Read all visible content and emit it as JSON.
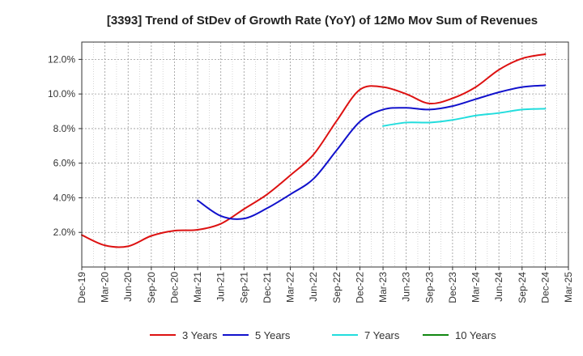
{
  "chart_data": {
    "type": "line",
    "title": "[3393]  Trend of StDev of Growth Rate (YoY) of 12Mo Mov Sum of Revenues",
    "xlabel": "",
    "ylabel": "",
    "ylim": [
      0.0,
      13.0
    ],
    "y_ticks": [
      2.0,
      4.0,
      6.0,
      8.0,
      10.0,
      12.0
    ],
    "y_tick_labels": [
      "2.0%",
      "4.0%",
      "6.0%",
      "8.0%",
      "10.0%",
      "12.0%"
    ],
    "categories": [
      "Dec-19",
      "Mar-20",
      "Jun-20",
      "Sep-20",
      "Dec-20",
      "Mar-21",
      "Jun-21",
      "Sep-21",
      "Dec-21",
      "Mar-22",
      "Jun-22",
      "Sep-22",
      "Dec-22",
      "Mar-23",
      "Jun-23",
      "Sep-23",
      "Dec-23",
      "Mar-24",
      "Jun-24",
      "Sep-24",
      "Dec-24",
      "Mar-25"
    ],
    "grid": true,
    "series": [
      {
        "name": "3 Years",
        "color": "#dd1111",
        "values": [
          1.85,
          1.25,
          1.2,
          1.8,
          2.1,
          2.15,
          2.5,
          3.35,
          4.2,
          5.3,
          6.5,
          8.45,
          10.25,
          10.4,
          10.0,
          9.45,
          9.75,
          10.4,
          11.4,
          12.05,
          12.3,
          null
        ]
      },
      {
        "name": "5 Years",
        "color": "#1111cc",
        "values": [
          null,
          null,
          null,
          null,
          null,
          3.85,
          2.95,
          2.8,
          3.4,
          4.2,
          5.1,
          6.75,
          8.4,
          9.1,
          9.2,
          9.1,
          9.3,
          9.7,
          10.1,
          10.4,
          10.5,
          null
        ]
      },
      {
        "name": "7 Years",
        "color": "#22dddd",
        "values": [
          null,
          null,
          null,
          null,
          null,
          null,
          null,
          null,
          null,
          null,
          null,
          null,
          null,
          8.15,
          8.35,
          8.35,
          8.5,
          8.75,
          8.9,
          9.1,
          9.15,
          null
        ]
      },
      {
        "name": "10 Years",
        "color": "#118811",
        "values": [
          null,
          null,
          null,
          null,
          null,
          null,
          null,
          null,
          null,
          null,
          null,
          null,
          null,
          null,
          null,
          null,
          null,
          null,
          null,
          null,
          null,
          null
        ]
      }
    ],
    "legend": "bottom"
  }
}
